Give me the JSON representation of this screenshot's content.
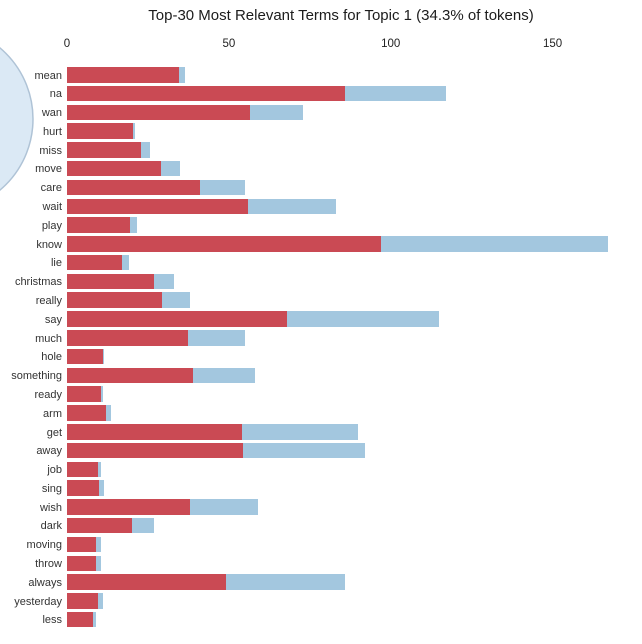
{
  "title": "Top-30 Most Relevant Terms for Topic 1 (34.3% of tokens)",
  "colors": {
    "topic_bar": "#CA4A54",
    "overall_bar": "#A3C7DF",
    "circle_fill": "#DBE9F5",
    "circle_stroke": "#AFC3D6"
  },
  "chart_data": {
    "type": "bar",
    "orientation": "horizontal",
    "title": "Top-30 Most Relevant Terms for Topic 1 (34.3% of tokens)",
    "grid": false,
    "legend_position": "none",
    "axis_ticks": [
      0,
      50,
      100,
      150
    ],
    "xlim": [
      0,
      177
    ],
    "categories": [
      "mean",
      "na",
      "wan",
      "hurt",
      "miss",
      "move",
      "care",
      "wait",
      "play",
      "know",
      "lie",
      "christmas",
      "really",
      "say",
      "much",
      "hole",
      "something",
      "ready",
      "arm",
      "get",
      "away",
      "job",
      "sing",
      "wish",
      "dark",
      "moving",
      "throw",
      "always",
      "yesterday",
      "less"
    ],
    "series": [
      {
        "name": "topic-frequency",
        "color": "#CA4A54",
        "values": [
          34.5,
          86,
          56.5,
          20.5,
          23,
          29,
          41,
          56,
          19.5,
          97,
          17,
          27,
          29.5,
          68,
          37.5,
          11,
          39,
          10.5,
          12,
          54,
          54.5,
          9.5,
          10,
          38,
          20,
          9,
          9,
          49,
          9.5,
          8
        ]
      },
      {
        "name": "overall-frequency",
        "color": "#A3C7DF",
        "values": [
          36.5,
          117,
          73,
          21,
          25.5,
          35,
          55,
          83,
          21.5,
          167,
          19,
          33,
          38,
          115,
          55,
          11.5,
          58,
          11,
          13.5,
          90,
          92,
          10.5,
          11.5,
          59,
          27,
          10.5,
          10.5,
          86,
          11,
          9
        ]
      }
    ]
  }
}
